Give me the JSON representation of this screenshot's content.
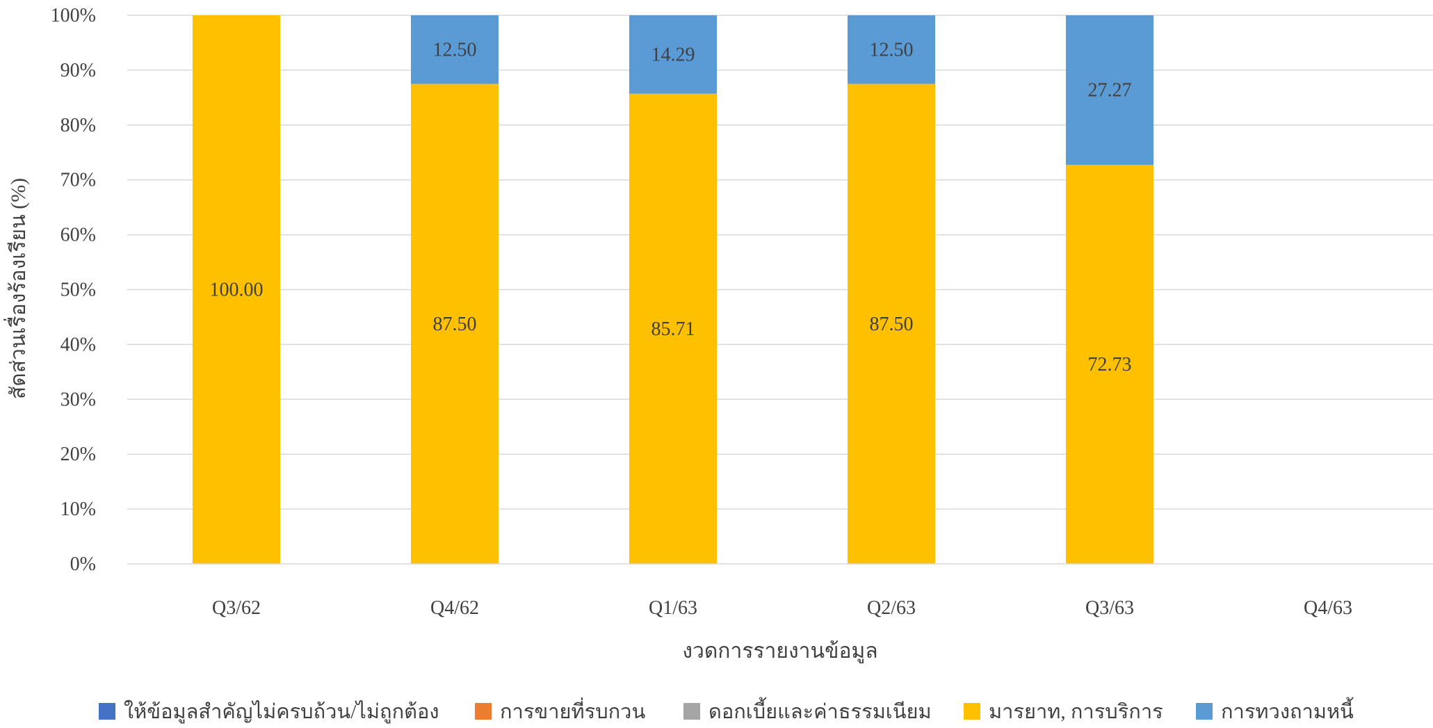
{
  "chart_data": {
    "type": "bar",
    "stacked": true,
    "percent_stacked": true,
    "categories": [
      "Q3/62",
      "Q4/62",
      "Q1/63",
      "Q2/63",
      "Q3/63",
      "Q4/63"
    ],
    "series": [
      {
        "name": "ให้ข้อมูลสำคัญไม่ครบถ้วน/ไม่ถูกต้อง",
        "color": "#4472C4",
        "values": [
          0,
          0,
          0,
          0,
          0,
          0
        ]
      },
      {
        "name": "การขายที่รบกวน",
        "color": "#ED7D31",
        "values": [
          0,
          0,
          0,
          0,
          0,
          0
        ]
      },
      {
        "name": "ดอกเบี้ยและค่าธรรมเนียม",
        "color": "#A5A5A5",
        "values": [
          0,
          0,
          0,
          0,
          0,
          0
        ]
      },
      {
        "name": "มารยาท, การบริการ",
        "color": "#FFC000",
        "values": [
          100.0,
          87.5,
          85.71,
          87.5,
          72.73,
          0
        ]
      },
      {
        "name": "การทวงถามหนี้",
        "color": "#5B9BD5",
        "values": [
          0,
          12.5,
          14.29,
          12.5,
          27.27,
          0
        ]
      }
    ],
    "data_labels": [
      [
        "",
        "",
        "",
        "",
        "",
        ""
      ],
      [
        "",
        "",
        "",
        "",
        "",
        ""
      ],
      [
        "",
        "",
        "",
        "",
        "",
        ""
      ],
      [
        "100.00",
        "87.50",
        "85.71",
        "87.50",
        "72.73",
        ""
      ],
      [
        "",
        "12.50",
        "14.29",
        "12.50",
        "27.27",
        ""
      ]
    ],
    "xlabel": "งวดการรายงานข้อมูล",
    "ylabel": "สัดส่วนเรื่องร้องเรียน (%)",
    "ylim": [
      0,
      100
    ],
    "yticks": [
      "0%",
      "10%",
      "20%",
      "30%",
      "40%",
      "50%",
      "60%",
      "70%",
      "80%",
      "90%",
      "100%"
    ],
    "grid": true,
    "legend_position": "bottom"
  }
}
